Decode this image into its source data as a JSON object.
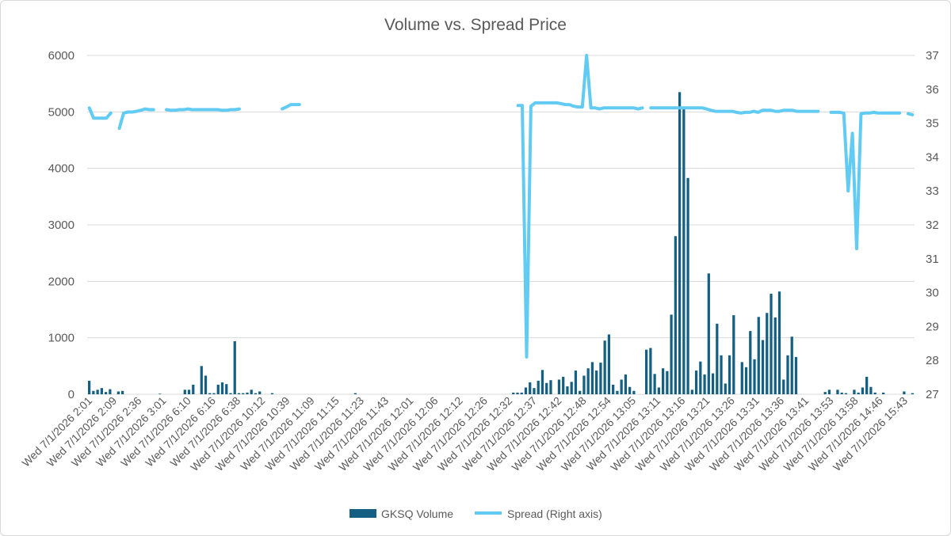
{
  "chart_data": {
    "type": "bar",
    "title": "Volume vs. Spread Price",
    "y_left": {
      "min": 0,
      "max": 6000,
      "ticks": [
        0,
        1000,
        2000,
        3000,
        4000,
        5000,
        6000
      ]
    },
    "y_right": {
      "min": 27,
      "max": 37,
      "ticks": [
        27,
        28,
        29,
        30,
        31,
        32,
        33,
        34,
        35,
        36,
        37
      ]
    },
    "grid": "horizontal",
    "legend_position": "bottom",
    "x_tick_labels": [
      "Wed 7/1/2026 2:01",
      "Wed 7/1/2026 2:09",
      "Wed 7/1/2026 2:36",
      "Wed 7/1/2026 3:01",
      "Wed 7/1/2026 6:10",
      "Wed 7/1/2026 6:16",
      "Wed 7/1/2026 6:38",
      "Wed 7/1/2026 10:12",
      "Wed 7/1/2026 10:39",
      "Wed 7/1/2026 11:09",
      "Wed 7/1/2026 11:15",
      "Wed 7/1/2026 11:23",
      "Wed 7/1/2026 11:43",
      "Wed 7/1/2026 12:01",
      "Wed 7/1/2026 12:06",
      "Wed 7/1/2026 12:12",
      "Wed 7/1/2026 12:26",
      "Wed 7/1/2026 12:32",
      "Wed 7/1/2026 12:37",
      "Wed 7/1/2026 12:42",
      "Wed 7/1/2026 12:48",
      "Wed 7/1/2026 12:54",
      "Wed 7/1/2026 13:05",
      "Wed 7/1/2026 13:11",
      "Wed 7/1/2026 13:16",
      "Wed 7/1/2026 13:21",
      "Wed 7/1/2026 13:26",
      "Wed 7/1/2026 13:31",
      "Wed 7/1/2026 13:36",
      "Wed 7/1/2026 13:41",
      "Wed 7/1/2026 13:53",
      "Wed 7/1/2026 13:58",
      "Wed 7/1/2026 14:46",
      "Wed 7/1/2026 15:43"
    ],
    "series": [
      {
        "name": "GKSQ Volume",
        "color": "#156082",
        "axis": "left",
        "values": [
          240,
          60,
          80,
          110,
          40,
          90,
          0,
          50,
          60,
          0,
          0,
          0,
          0,
          0,
          0,
          0,
          0,
          10,
          0,
          0,
          0,
          0,
          0,
          80,
          80,
          170,
          0,
          500,
          330,
          20,
          20,
          170,
          210,
          180,
          20,
          940,
          20,
          20,
          30,
          80,
          20,
          50,
          0,
          0,
          20,
          0,
          0,
          0,
          0,
          0,
          0,
          0,
          0,
          0,
          0,
          0,
          0,
          0,
          0,
          0,
          0,
          0,
          0,
          0,
          20,
          0,
          0,
          0,
          0,
          0,
          0,
          0,
          0,
          0,
          0,
          0,
          0,
          0,
          0,
          0,
          0,
          0,
          0,
          0,
          0,
          0,
          0,
          0,
          0,
          0,
          0,
          0,
          0,
          0,
          0,
          0,
          0,
          0,
          0,
          0,
          0,
          0,
          30,
          30,
          30,
          120,
          210,
          110,
          240,
          430,
          200,
          250,
          0,
          260,
          310,
          140,
          220,
          420,
          60,
          330,
          460,
          570,
          420,
          560,
          950,
          1060,
          170,
          60,
          260,
          350,
          130,
          60,
          0,
          0,
          790,
          820,
          360,
          120,
          460,
          410,
          1410,
          2800,
          5350,
          5060,
          3830,
          80,
          420,
          580,
          350,
          2140,
          370,
          1250,
          690,
          190,
          690,
          1400,
          0,
          570,
          480,
          1120,
          620,
          1370,
          960,
          1440,
          1780,
          1360,
          1820,
          260,
          690,
          1020,
          660,
          0,
          0,
          0,
          0,
          0,
          0,
          40,
          80,
          0,
          80,
          30,
          20,
          0,
          80,
          30,
          120,
          310,
          130,
          30,
          0,
          30,
          0,
          0,
          0,
          0,
          50,
          0,
          20
        ]
      },
      {
        "name": "Spread (Right axis)",
        "color": "#61cbf3",
        "axis": "right",
        "values": [
          35.45,
          35.15,
          35.15,
          35.15,
          35.15,
          35.3,
          null,
          34.85,
          35.3,
          35.33,
          35.33,
          35.35,
          35.38,
          35.42,
          35.4,
          35.4,
          null,
          null,
          35.4,
          35.38,
          35.38,
          35.4,
          35.4,
          35.42,
          35.4,
          35.4,
          35.4,
          35.4,
          35.4,
          35.4,
          35.4,
          35.38,
          35.38,
          35.4,
          35.4,
          35.42,
          null,
          null,
          null,
          null,
          null,
          null,
          null,
          null,
          null,
          35.42,
          35.48,
          35.55,
          35.55,
          35.55,
          null,
          null,
          null,
          null,
          null,
          null,
          null,
          null,
          null,
          null,
          null,
          null,
          null,
          null,
          null,
          null,
          null,
          null,
          null,
          null,
          null,
          null,
          null,
          null,
          null,
          null,
          null,
          null,
          null,
          null,
          null,
          null,
          null,
          null,
          null,
          null,
          null,
          null,
          null,
          null,
          null,
          null,
          null,
          null,
          null,
          null,
          null,
          null,
          null,
          null,
          35.52,
          35.52,
          28.1,
          35.5,
          35.6,
          35.6,
          35.6,
          35.6,
          35.6,
          35.6,
          35.58,
          35.55,
          35.55,
          35.5,
          35.48,
          35.48,
          37,
          35.45,
          35.45,
          35.42,
          35.45,
          35.45,
          35.45,
          35.45,
          35.45,
          35.45,
          35.45,
          35.45,
          35.42,
          35.45,
          null,
          35.45,
          35.45,
          35.45,
          35.45,
          35.45,
          35.45,
          35.45,
          35.45,
          35.45,
          35.45,
          35.45,
          35.45,
          35.45,
          35.42,
          35.38,
          35.35,
          35.35,
          35.35,
          35.35,
          35.35,
          35.32,
          35.3,
          35.32,
          35.32,
          35.35,
          35.32,
          35.38,
          35.38,
          35.38,
          35.35,
          35.35,
          35.38,
          35.38,
          35.38,
          35.35,
          35.35,
          35.35,
          35.35,
          35.35,
          35.35,
          null,
          null,
          35.32,
          35.32,
          35.32,
          35.3,
          33,
          34.7,
          31.3,
          35.28,
          35.3,
          35.3,
          35.32,
          35.3,
          35.3,
          35.3,
          35.3,
          35.3,
          35.3,
          null,
          35.28,
          35.25
        ]
      }
    ]
  }
}
